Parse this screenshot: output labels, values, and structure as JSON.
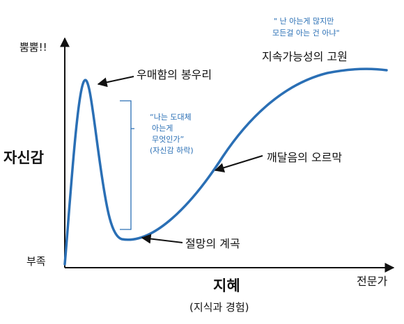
{
  "chart_data": {
    "type": "line",
    "ylabel": "자신감",
    "xlabel": "지혜",
    "xlabel_sub": "(지식과 경험)",
    "y_top_label": "뿜뿜!!",
    "y_bottom_label": "부족",
    "x_end_label": "전문가",
    "grid": false,
    "legend": "none",
    "curve_color": "#2a6fb5",
    "annotations": {
      "peak": "우매함의 봉우리",
      "valley": "절망의 계곡",
      "slope": "깨달음의 오르막",
      "plateau": "지속가능성의 고원"
    },
    "quote_valley": [
      "“나는 도대체",
      "아는게",
      "무엇인가”",
      "(자신감 하락)"
    ],
    "quote_plateau": [
      "\" 난 아는게 많지만",
      "모든걸 아는 건 아냐\""
    ]
  }
}
